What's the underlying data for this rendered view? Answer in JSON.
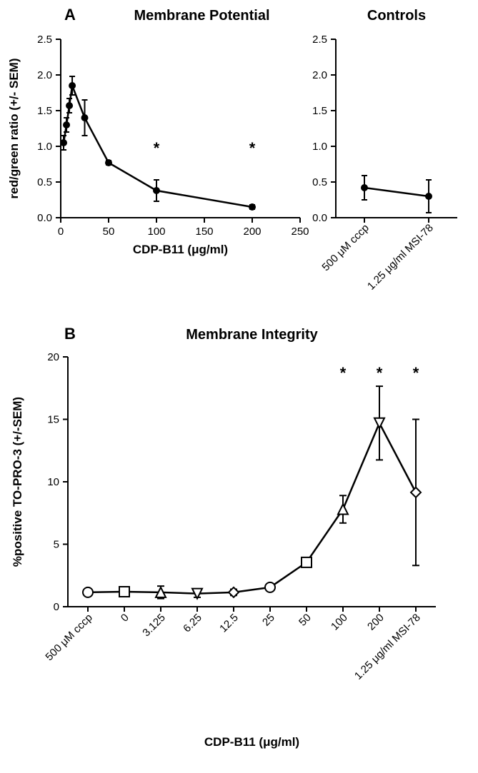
{
  "panelA": {
    "letter": "A",
    "title": "Membrane Potential",
    "ylabel": "red/green ratio (+/- SEM)",
    "xlabel": "CDP-B11 (μg/ml)",
    "xlim": [
      0,
      250
    ],
    "xtick_step": 50,
    "ylim": [
      0,
      2.5
    ],
    "ytick_step": 0.5,
    "marker": "circle-filled",
    "marker_size": 5,
    "line_color": "#000000",
    "line_width": 2.5,
    "points": [
      {
        "x": 3,
        "y": 1.05,
        "err": 0.1
      },
      {
        "x": 6,
        "y": 1.3,
        "err": 0.1
      },
      {
        "x": 9,
        "y": 1.57,
        "err": 0.1
      },
      {
        "x": 12,
        "y": 1.85,
        "err": 0.13
      },
      {
        "x": 25,
        "y": 1.4,
        "err": 0.25
      },
      {
        "x": 50,
        "y": 0.77,
        "err": 0.03
      },
      {
        "x": 100,
        "y": 0.38,
        "err": 0.15,
        "star": true
      },
      {
        "x": 200,
        "y": 0.15,
        "err": 0.03,
        "star": true
      }
    ],
    "star_y": 0.9
  },
  "panelA_ctrl": {
    "title": "Controls",
    "ylim": [
      0,
      2.5
    ],
    "ytick_step": 0.5,
    "xticks": [
      "500 μM cccp",
      "1.25 μg/ml MSI-78"
    ],
    "marker": "circle-filled",
    "marker_size": 5,
    "line_color": "#000000",
    "points": [
      {
        "x": 0,
        "y": 0.42,
        "err": 0.17
      },
      {
        "x": 1,
        "y": 0.3,
        "err": 0.23
      }
    ]
  },
  "panelB": {
    "letter": "B",
    "title": "Membrane Integrity",
    "ylabel": "%positive TO-PRO-3 (+/-SEM)",
    "xlabel": "CDP-B11 (μg/ml)",
    "ylim": [
      0,
      20
    ],
    "ytick_step": 5,
    "xticks": [
      "500 μM cccp",
      "0",
      "3.125",
      "6.25",
      "12.5",
      "25",
      "50",
      "100",
      "200",
      "1.25 μg/ml MSI-78"
    ],
    "line_color": "#000000",
    "line_width": 2.5,
    "marker_size": 7,
    "points": [
      {
        "x": 0,
        "y": 1.15,
        "err": 0.25,
        "marker": "circle-open"
      },
      {
        "x": 1,
        "y": 1.2,
        "err": 0.4,
        "marker": "square-open"
      },
      {
        "x": 2,
        "y": 1.15,
        "err": 0.5,
        "marker": "triangle-up-open"
      },
      {
        "x": 3,
        "y": 1.05,
        "err": 0.3,
        "marker": "triangle-down-open"
      },
      {
        "x": 4,
        "y": 1.15,
        "err": 0.25,
        "marker": "diamond-open"
      },
      {
        "x": 5,
        "y": 1.55,
        "err": 0.3,
        "marker": "circle-open"
      },
      {
        "x": 6,
        "y": 3.55,
        "err": 0.15,
        "marker": "square-open"
      },
      {
        "x": 7,
        "y": 7.8,
        "err": 1.1,
        "marker": "triangle-up-open",
        "star": true
      },
      {
        "x": 8,
        "y": 14.7,
        "err": 2.95,
        "marker": "triangle-down-open",
        "star": true
      },
      {
        "x": 9,
        "y": 9.15,
        "err": 5.85,
        "marker": "diamond-open",
        "star": true
      }
    ],
    "star_y": 18.3
  },
  "colors": {
    "fg": "#000000",
    "bg": "#ffffff"
  },
  "font": {
    "family": "Arial",
    "tick_size": 15,
    "label_size": 17,
    "title_size": 20
  }
}
